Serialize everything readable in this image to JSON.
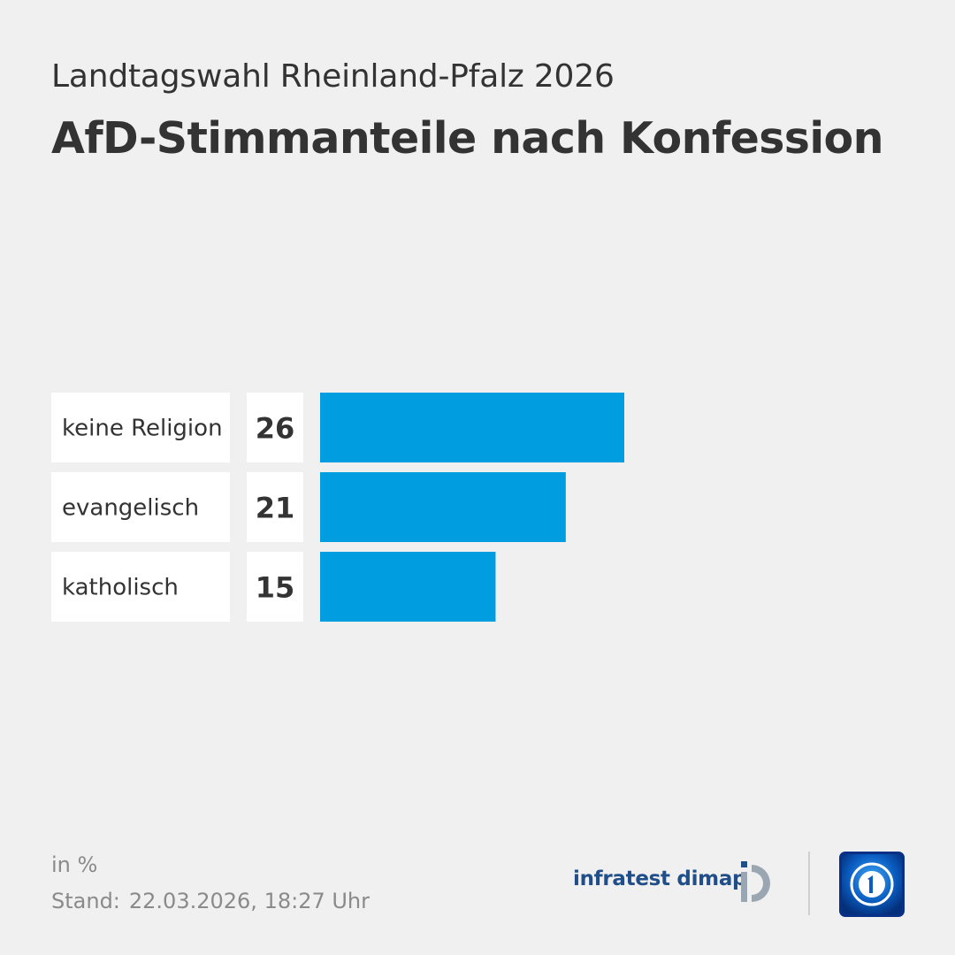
{
  "header": {
    "subtitle": "Landtagswahl Rheinland-Pfalz 2026",
    "title": "AfD-Stimmanteile nach Konfession"
  },
  "chart_data": {
    "type": "bar",
    "orientation": "horizontal",
    "categories": [
      "keine Religion",
      "evangelisch",
      "katholisch"
    ],
    "values": [
      26,
      21,
      15
    ],
    "bar_color": "#009de0",
    "unit": "in %",
    "grid": false,
    "legend": "none"
  },
  "footer": {
    "unit_note": "in %",
    "stand_label": "Stand:",
    "stand_date": "22.03.2026, 18:27 Uhr",
    "brand_name": "infratest dimap",
    "brand_icon": "infratest-dimap-logo",
    "broadcaster_icon": "tagesschau-logo"
  }
}
